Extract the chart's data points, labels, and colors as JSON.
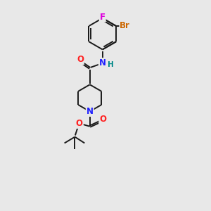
{
  "bg_color": "#e8e8e8",
  "bond_color": "#1a1a1a",
  "atom_colors": {
    "N": "#2020ff",
    "O": "#ff2020",
    "F": "#dd00dd",
    "Br": "#cc6600",
    "H": "#008888",
    "C": "#1a1a1a"
  },
  "lw": 1.4,
  "fontsize": 8.5,
  "xlim": [
    0,
    10
  ],
  "ylim": [
    0,
    14
  ]
}
